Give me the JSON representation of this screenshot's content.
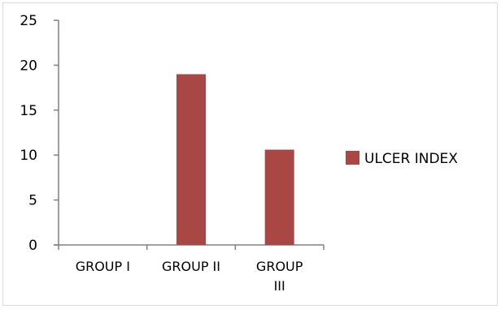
{
  "chart_data": {
    "type": "bar",
    "categories": [
      "GROUP I",
      "GROUP II",
      "GROUP III"
    ],
    "category_label_lines": [
      [
        "GROUP I"
      ],
      [
        "GROUP II"
      ],
      [
        "GROUP",
        "III"
      ]
    ],
    "series": [
      {
        "name": "ULCER INDEX",
        "values": [
          0,
          19,
          10.6
        ],
        "color": "#A94745"
      }
    ],
    "y_ticks": [
      "0",
      "5",
      "10",
      "15",
      "20",
      "25"
    ],
    "ylim": [
      0,
      25
    ],
    "grid": false,
    "legend_position": "right",
    "title": "",
    "xlabel": "",
    "ylabel": ""
  }
}
